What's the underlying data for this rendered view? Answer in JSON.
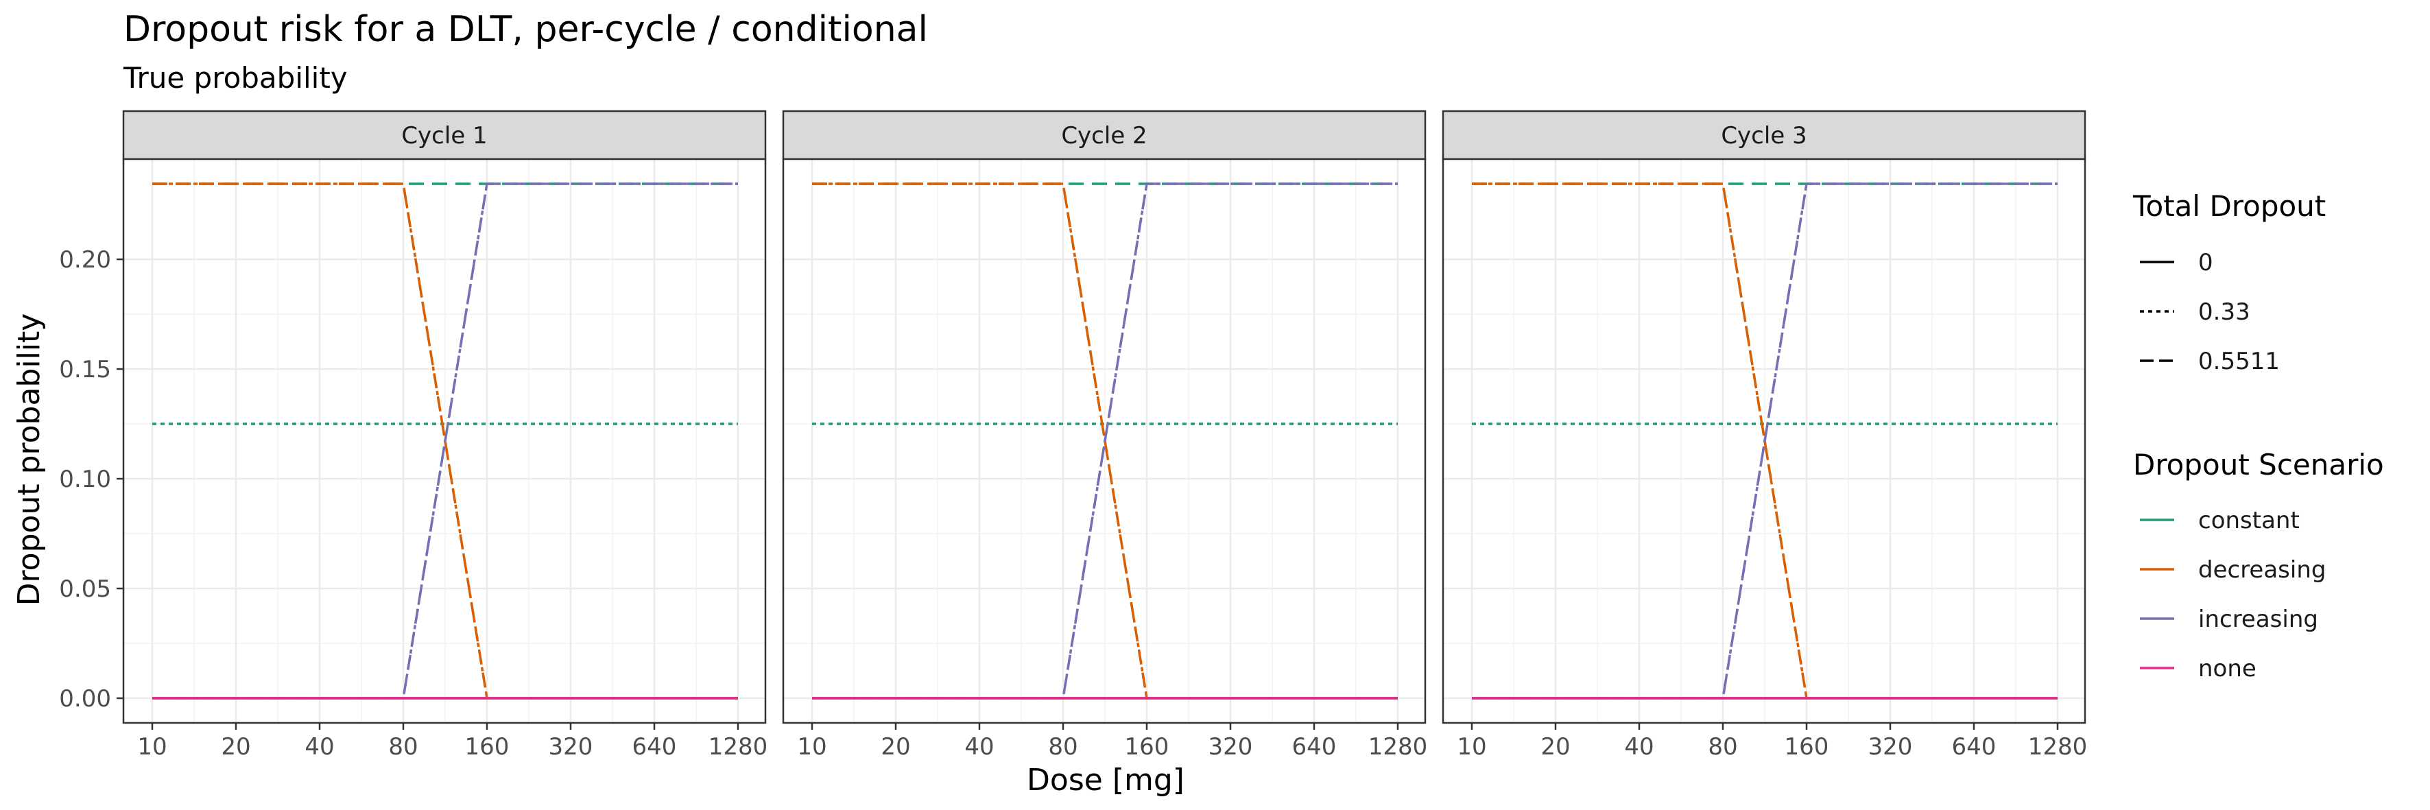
{
  "chart_data": {
    "type": "line",
    "title": "Dropout risk for a DLT, per-cycle / conditional",
    "subtitle": "True probability",
    "xlabel": "Dose [mg]",
    "ylabel": "Dropout probability",
    "x_scale": "log2",
    "x_ticks": [
      10,
      20,
      40,
      80,
      160,
      320,
      640,
      1280
    ],
    "x_tick_labels": [
      "10",
      "20",
      "40",
      "80",
      "160",
      "320",
      "640",
      "1280"
    ],
    "y_ticks": [
      0,
      0.05,
      0.1,
      0.15,
      0.2
    ],
    "y_tick_labels": [
      "0.00",
      "0.05",
      "0.10",
      "0.15",
      "0.20"
    ],
    "xlim": [
      10,
      1280
    ],
    "ylim": [
      0,
      0.2344
    ],
    "grid": true,
    "facets": [
      "Cycle 1",
      "Cycle 2",
      "Cycle 3"
    ],
    "legends": [
      {
        "title": "Total Dropout",
        "encoding": "linetype",
        "entries": [
          {
            "label": "0",
            "dash": "solid"
          },
          {
            "label": "0.33",
            "dash": "dotted"
          },
          {
            "label": "0.5511",
            "dash": "dashed"
          }
        ]
      },
      {
        "title": "Dropout Scenario",
        "encoding": "color",
        "entries": [
          {
            "label": "constant",
            "color": "#1b9e77"
          },
          {
            "label": "decreasing",
            "color": "#d95f02"
          },
          {
            "label": "increasing",
            "color": "#7570b3"
          },
          {
            "label": "none",
            "color": "#e7298a"
          }
        ]
      }
    ],
    "series": [
      {
        "scenario": "constant",
        "total": "0",
        "color": "#1b9e77",
        "dash": "solid",
        "x": [
          10,
          1280
        ],
        "y": [
          0,
          0
        ]
      },
      {
        "scenario": "constant",
        "total": "0.33",
        "color": "#1b9e77",
        "dash": "dotted",
        "x": [
          10,
          1280
        ],
        "y": [
          0.125,
          0.125
        ]
      },
      {
        "scenario": "constant",
        "total": "0.5511",
        "color": "#1b9e77",
        "dash": "dashed",
        "x": [
          10,
          1280
        ],
        "y": [
          0.2344,
          0.2344
        ]
      },
      {
        "scenario": "decreasing",
        "total": "0",
        "color": "#d95f02",
        "dash": "solid",
        "x": [
          10,
          1280
        ],
        "y": [
          0,
          0
        ]
      },
      {
        "scenario": "decreasing",
        "total": "0.33",
        "color": "#d95f02",
        "dash": "dotted",
        "x": [
          10,
          80,
          160,
          1280
        ],
        "y": [
          0.2344,
          0.2344,
          0,
          0
        ]
      },
      {
        "scenario": "decreasing",
        "total": "0.5511",
        "color": "#d95f02",
        "dash": "dashed",
        "x": [
          10,
          80,
          160,
          1280
        ],
        "y": [
          0.2344,
          0.2344,
          0,
          0
        ]
      },
      {
        "scenario": "increasing",
        "total": "0",
        "color": "#7570b3",
        "dash": "solid",
        "x": [
          10,
          1280
        ],
        "y": [
          0,
          0
        ]
      },
      {
        "scenario": "increasing",
        "total": "0.33",
        "color": "#7570b3",
        "dash": "dotted",
        "x": [
          10,
          80,
          160,
          1280
        ],
        "y": [
          0,
          0,
          0.2344,
          0.2344
        ]
      },
      {
        "scenario": "increasing",
        "total": "0.5511",
        "color": "#7570b3",
        "dash": "dashed",
        "x": [
          10,
          80,
          160,
          1280
        ],
        "y": [
          0,
          0,
          0.2344,
          0.2344
        ]
      },
      {
        "scenario": "none",
        "total": "0",
        "color": "#e7298a",
        "dash": "solid",
        "x": [
          10,
          1280
        ],
        "y": [
          0,
          0
        ]
      }
    ]
  }
}
